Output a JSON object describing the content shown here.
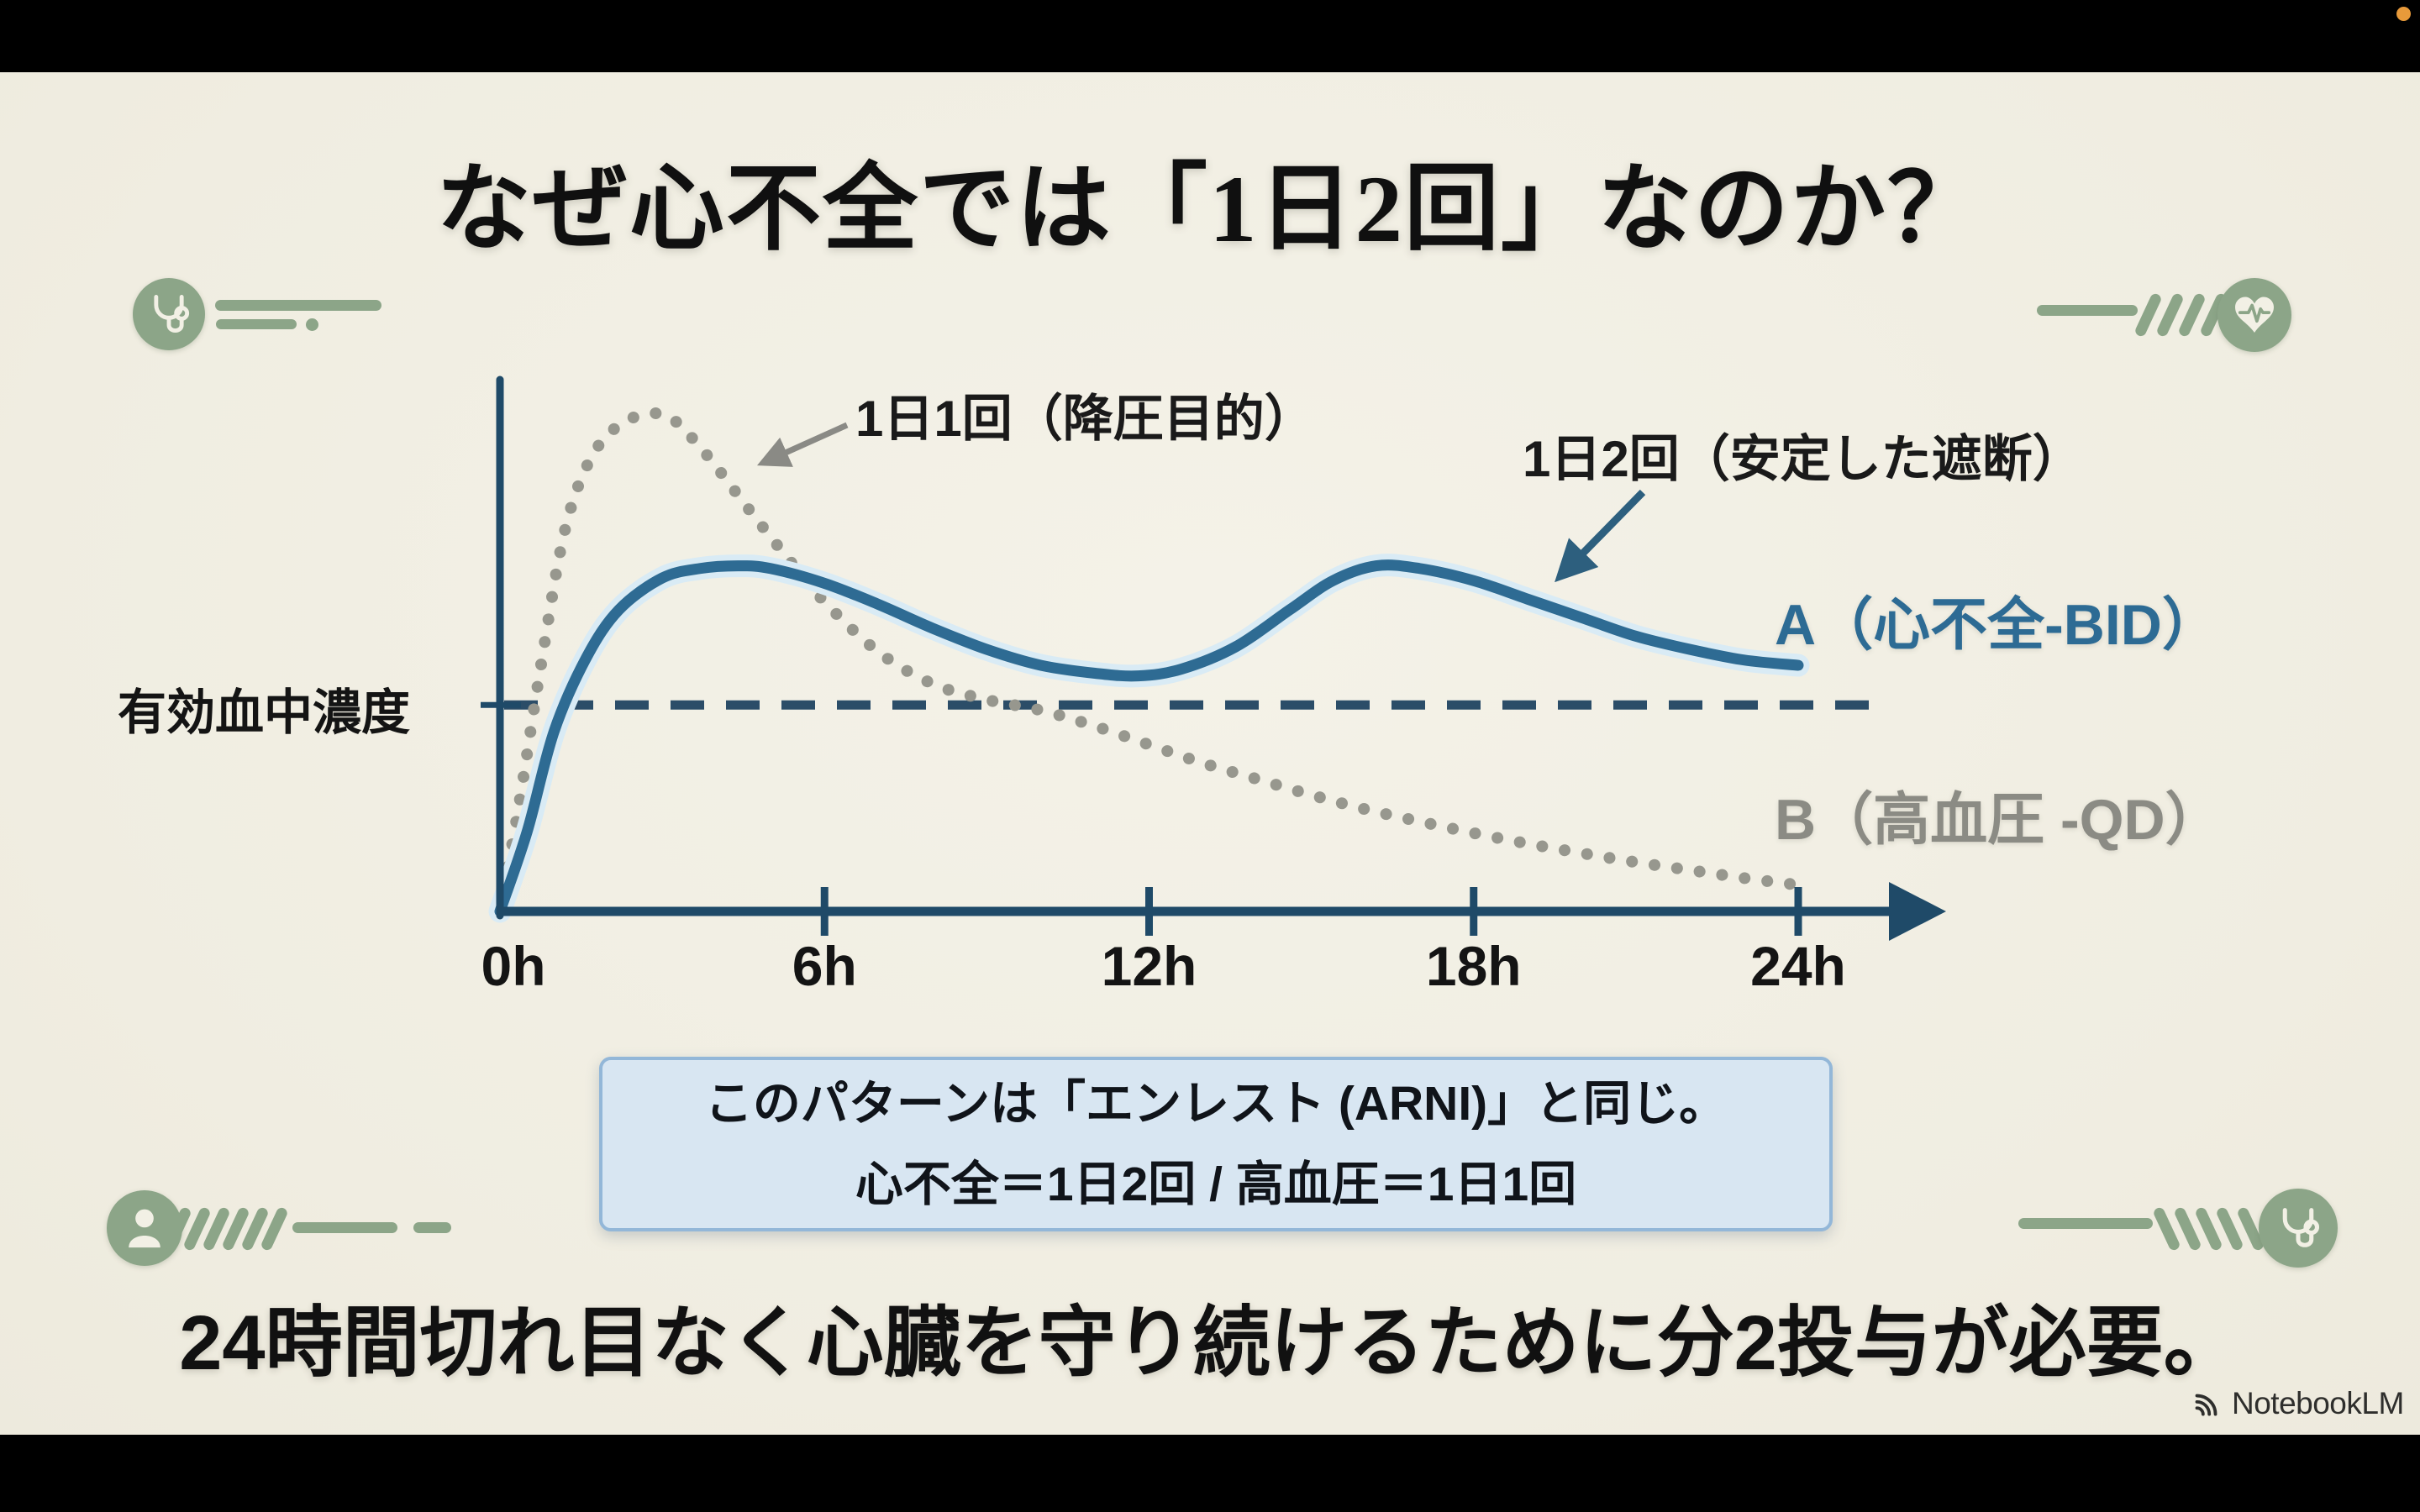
{
  "frame": {
    "watermark": "NotebookLM"
  },
  "colors": {
    "background": "#f2efe4",
    "letterbox": "#000000",
    "accent_green": "#8ca588",
    "recording_dot": "#e89a3a",
    "title_text": "#101010",
    "info_box_bg": "#d8e6f2",
    "info_box_border": "#93b7d8"
  },
  "slide": {
    "title": "なぜ心不全では「1日2回」なのか？",
    "footer": "24時間切れ目なく心臓を守り続けるために分2投与が必要。",
    "info_box": {
      "line1": "このパターンは「エンレスト (ARNI)」と同じ。",
      "line2": "心不全＝1日2回 / 高血圧＝1日1回"
    }
  },
  "chart_data": {
    "type": "line",
    "title": "",
    "xlabel": "",
    "ylabel": "有効血中濃度",
    "x_unit": "hours",
    "x_range": [
      0,
      24
    ],
    "y_range": [
      0,
      100
    ],
    "grid": false,
    "axis_color": "#1f4a68",
    "x_ticks": [
      {
        "h": 0,
        "label": "0h"
      },
      {
        "h": 6,
        "label": "6h"
      },
      {
        "h": 12,
        "label": "12h"
      },
      {
        "h": 18,
        "label": "18h"
      },
      {
        "h": 24,
        "label": "24h"
      }
    ],
    "threshold": {
      "label": "有効血中濃度",
      "value": 39,
      "style": "dashed",
      "color": "#2b4d68"
    },
    "series": [
      {
        "name": "A（心不全-BID）",
        "dosing": "1日2回",
        "style": "solid",
        "color": "#2e6b93",
        "halo": "#d9ebf5",
        "label_color": "#2d6b94",
        "x": [
          0,
          0.5,
          1,
          1.6,
          2.2,
          3,
          3.7,
          4.4,
          5,
          6,
          7,
          8,
          9,
          10,
          11,
          11.8,
          12.6,
          13.6,
          14.6,
          15.4,
          16.2,
          17,
          18,
          19,
          20,
          21,
          22,
          23,
          24
        ],
        "values": [
          0,
          15,
          34,
          48,
          57,
          63,
          64.8,
          65.3,
          64.8,
          62,
          58,
          53.5,
          49.5,
          46.5,
          45,
          44.5,
          45.8,
          50,
          57,
          62.5,
          65.3,
          64.8,
          62.5,
          59,
          55.5,
          52,
          49.5,
          47.5,
          46.5
        ]
      },
      {
        "name": "B（高血圧 -QD）",
        "dosing": "1日1回",
        "style": "dotted",
        "color": "#97978e",
        "halo": null,
        "label_color": "#8b8b84",
        "x": [
          0,
          0.35,
          0.75,
          1.2,
          1.7,
          2.3,
          3,
          3.5,
          4,
          4.6,
          5.3,
          6,
          7,
          8,
          9,
          10,
          11,
          12,
          13,
          14,
          15,
          16,
          17,
          18,
          19,
          20,
          21,
          22,
          23,
          24
        ],
        "values": [
          0,
          20,
          46,
          72,
          86,
          92.5,
          94,
          90,
          84,
          76,
          67,
          58.5,
          49,
          43,
          40,
          38,
          35,
          31.5,
          28,
          25,
          22,
          19.3,
          17,
          14.8,
          12.8,
          11,
          9.3,
          7.8,
          6.3,
          5
        ]
      }
    ],
    "annotations": [
      {
        "text": "1日1回（降圧目的）",
        "series": "B",
        "arrow_color": "#8a8a85"
      },
      {
        "text": "1日2回（安定した遮断）",
        "series": "A",
        "arrow_color": "#2d5f7e"
      }
    ]
  }
}
